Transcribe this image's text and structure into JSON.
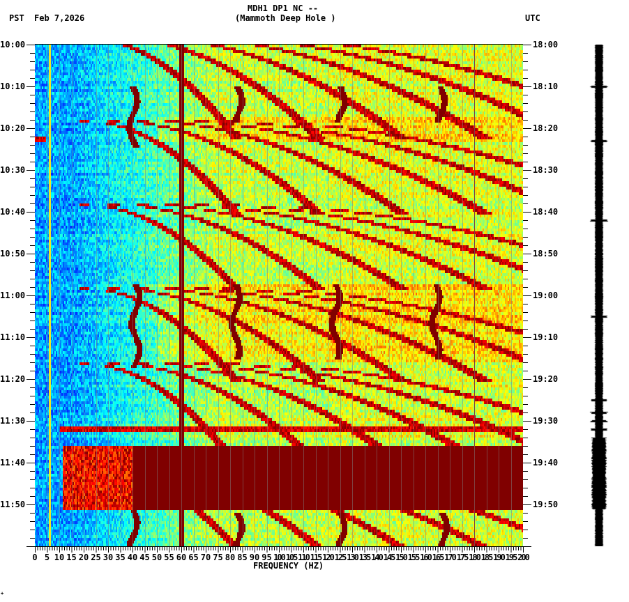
{
  "header": {
    "station_line": "MDH1 DP1 NC --",
    "location_line": "(Mammoth Deep Hole )",
    "left_tz": "PST",
    "date": "Feb 7,2026",
    "right_tz": "UTC"
  },
  "footer_mark": "+",
  "chart_data": {
    "type": "heatmap",
    "title": "MDH1 DP1 NC -- (Mammoth Deep Hole )",
    "xlabel": "FREQUENCY (HZ)",
    "ylabel_left": "PST",
    "ylabel_right": "UTC",
    "xlim": [
      0,
      200
    ],
    "x_ticks": [
      0,
      5,
      10,
      15,
      20,
      25,
      30,
      35,
      40,
      45,
      50,
      55,
      60,
      65,
      70,
      75,
      80,
      85,
      90,
      95,
      100,
      105,
      110,
      115,
      120,
      125,
      130,
      135,
      140,
      145,
      150,
      155,
      160,
      165,
      170,
      175,
      180,
      185,
      190,
      195,
      200
    ],
    "y_ticks_left": [
      "10:00",
      "10:10",
      "10:20",
      "10:30",
      "10:40",
      "10:50",
      "11:00",
      "11:10",
      "11:20",
      "11:30",
      "11:40",
      "11:50"
    ],
    "y_ticks_right": [
      "18:00",
      "18:10",
      "18:20",
      "18:30",
      "18:40",
      "18:50",
      "19:00",
      "19:10",
      "19:20",
      "19:30",
      "19:40",
      "19:50"
    ],
    "time_range_minutes": 120,
    "minor_tick_minutes": 2,
    "colormap": [
      "#0000ff",
      "#0080ff",
      "#00ffff",
      "#80ff80",
      "#ffff00",
      "#ff8000",
      "#ff0000",
      "#800000"
    ],
    "persistent_lines_hz": [
      6,
      60,
      180
    ],
    "features": [
      {
        "type": "broadband_saturation",
        "start_min": 96,
        "end_min": 111,
        "freq_low_hz": 11,
        "freq_high_hz": 200,
        "level": "max"
      },
      {
        "type": "horizontal_band",
        "minute": 91.5,
        "freq_low_hz": 10,
        "freq_high_hz": 200
      },
      {
        "type": "horizontal_band",
        "minute": 22.5,
        "freq_low_hz": 0,
        "freq_high_hz": 4
      },
      {
        "type": "gliding_tones",
        "description": "repeating curved harmonic chirps rising in frequency with time, period ~20 min"
      },
      {
        "type": "vertical_wiggle",
        "freq_hz": 40,
        "start_min": 10,
        "end_min": 24
      },
      {
        "type": "vertical_wiggle",
        "freq_hz": 83,
        "start_min": 10,
        "end_min": 18
      },
      {
        "type": "vertical_wiggle",
        "freq_hz": 125,
        "start_min": 10,
        "end_min": 18
      },
      {
        "type": "vertical_wiggle",
        "freq_hz": 166,
        "start_min": 10,
        "end_min": 18
      },
      {
        "type": "vertical_wiggle",
        "freq_hz": 41,
        "start_min": 57,
        "end_min": 77
      },
      {
        "type": "vertical_wiggle",
        "freq_hz": 82,
        "start_min": 57,
        "end_min": 75
      },
      {
        "type": "vertical_wiggle",
        "freq_hz": 123,
        "start_min": 57,
        "end_min": 75
      },
      {
        "type": "vertical_wiggle",
        "freq_hz": 164,
        "start_min": 57,
        "end_min": 75
      },
      {
        "type": "vertical_wiggle",
        "freq_hz": 40,
        "start_min": 111,
        "end_min": 120
      },
      {
        "type": "vertical_wiggle",
        "freq_hz": 83,
        "start_min": 112,
        "end_min": 120
      },
      {
        "type": "vertical_wiggle",
        "freq_hz": 125,
        "start_min": 112,
        "end_min": 120
      },
      {
        "type": "vertical_wiggle",
        "freq_hz": 167,
        "start_min": 112,
        "end_min": 120
      }
    ],
    "seismogram": {
      "position": "right of spectrogram",
      "large_amplitude_window_min": [
        94,
        111
      ],
      "spikes_min": [
        10,
        23,
        42,
        65,
        85,
        88,
        90,
        92
      ]
    }
  }
}
